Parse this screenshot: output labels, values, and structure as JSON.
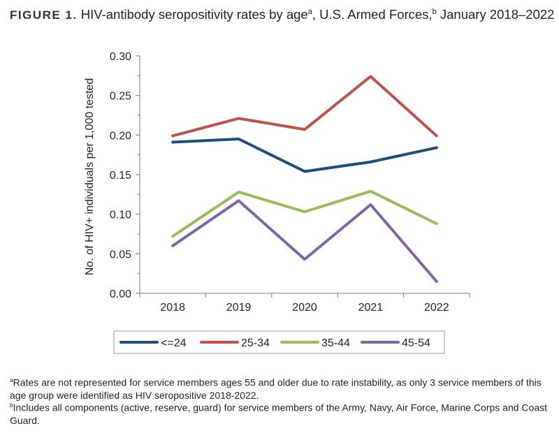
{
  "title": {
    "label": "FIGURE 1.",
    "text_before_a": "HIV-antibody seropositivity rates by age",
    "sup_a": "a",
    "text_before_b": ", U.S. Armed Forces,",
    "sup_b": "b",
    "text_after": " January 2018–2022"
  },
  "chart_data": {
    "type": "line",
    "xlabel": "",
    "ylabel": "No. of HIV+ individuals per 1,000 tested",
    "categories": [
      "2018",
      "2019",
      "2020",
      "2021",
      "2022"
    ],
    "ylim": [
      0,
      0.3
    ],
    "yticks": [
      "0.00",
      "0.05",
      "0.10",
      "0.15",
      "0.20",
      "0.25",
      "0.30"
    ],
    "grid": false,
    "legend_position": "bottom",
    "series": [
      {
        "name": "<=24",
        "color": "#1f4e79",
        "values": [
          0.191,
          0.195,
          0.154,
          0.166,
          0.184
        ]
      },
      {
        "name": "25-34",
        "color": "#c0504d",
        "values": [
          0.199,
          0.221,
          0.207,
          0.274,
          0.199
        ]
      },
      {
        "name": "35-44",
        "color": "#9bbb59",
        "values": [
          0.072,
          0.128,
          0.103,
          0.129,
          0.088
        ]
      },
      {
        "name": "45-54",
        "color": "#8064a2",
        "values": [
          0.06,
          0.117,
          0.043,
          0.112,
          0.015
        ]
      }
    ]
  },
  "footnotes": {
    "a_mark": "a",
    "a": "Rates are not represented for service members ages 55 and older due to rate instability, as only 3 service members of this age group were identified as HIV seropositive 2018-2022.",
    "b_mark": "b",
    "b": "Includes all components (active, reserve, guard) for service members of the Army, Navy, Air Force, Marine Corps and Coast Guard."
  }
}
